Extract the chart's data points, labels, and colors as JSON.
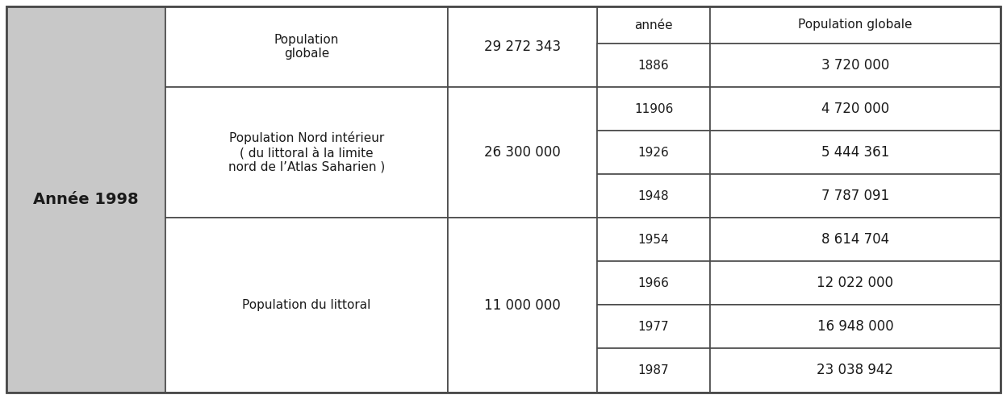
{
  "left_header": "Année 1998",
  "col3_header": "année",
  "col4_header": "Population globale",
  "left_bg": "#c8c8c8",
  "white": "#ffffff",
  "border_color": "#4a4a4a",
  "text_color": "#1a1a1a",
  "pop_globale_label": "Population\nglobale",
  "pop_globale_val": "29 272 343",
  "nord_label": "Population Nord intérieur\n( du littoral à la limite\nnord de l’Atlas Saharien )",
  "nord_val": "26 300 000",
  "littoral_label": "Population du littoral",
  "littoral_val": "11 000 000",
  "years_pop_globale": [
    [
      "1886",
      "3 720 000"
    ]
  ],
  "years_nord": [
    [
      "11906",
      "4 720 000"
    ],
    [
      "1926",
      "5 444 361"
    ],
    [
      "1948",
      "7 787 091"
    ]
  ],
  "years_littoral": [
    [
      "1954",
      "8 614 704"
    ],
    [
      "1966",
      "12 022 000"
    ],
    [
      "1977",
      "16 948 000"
    ],
    [
      "1987",
      "23 038 942"
    ]
  ]
}
